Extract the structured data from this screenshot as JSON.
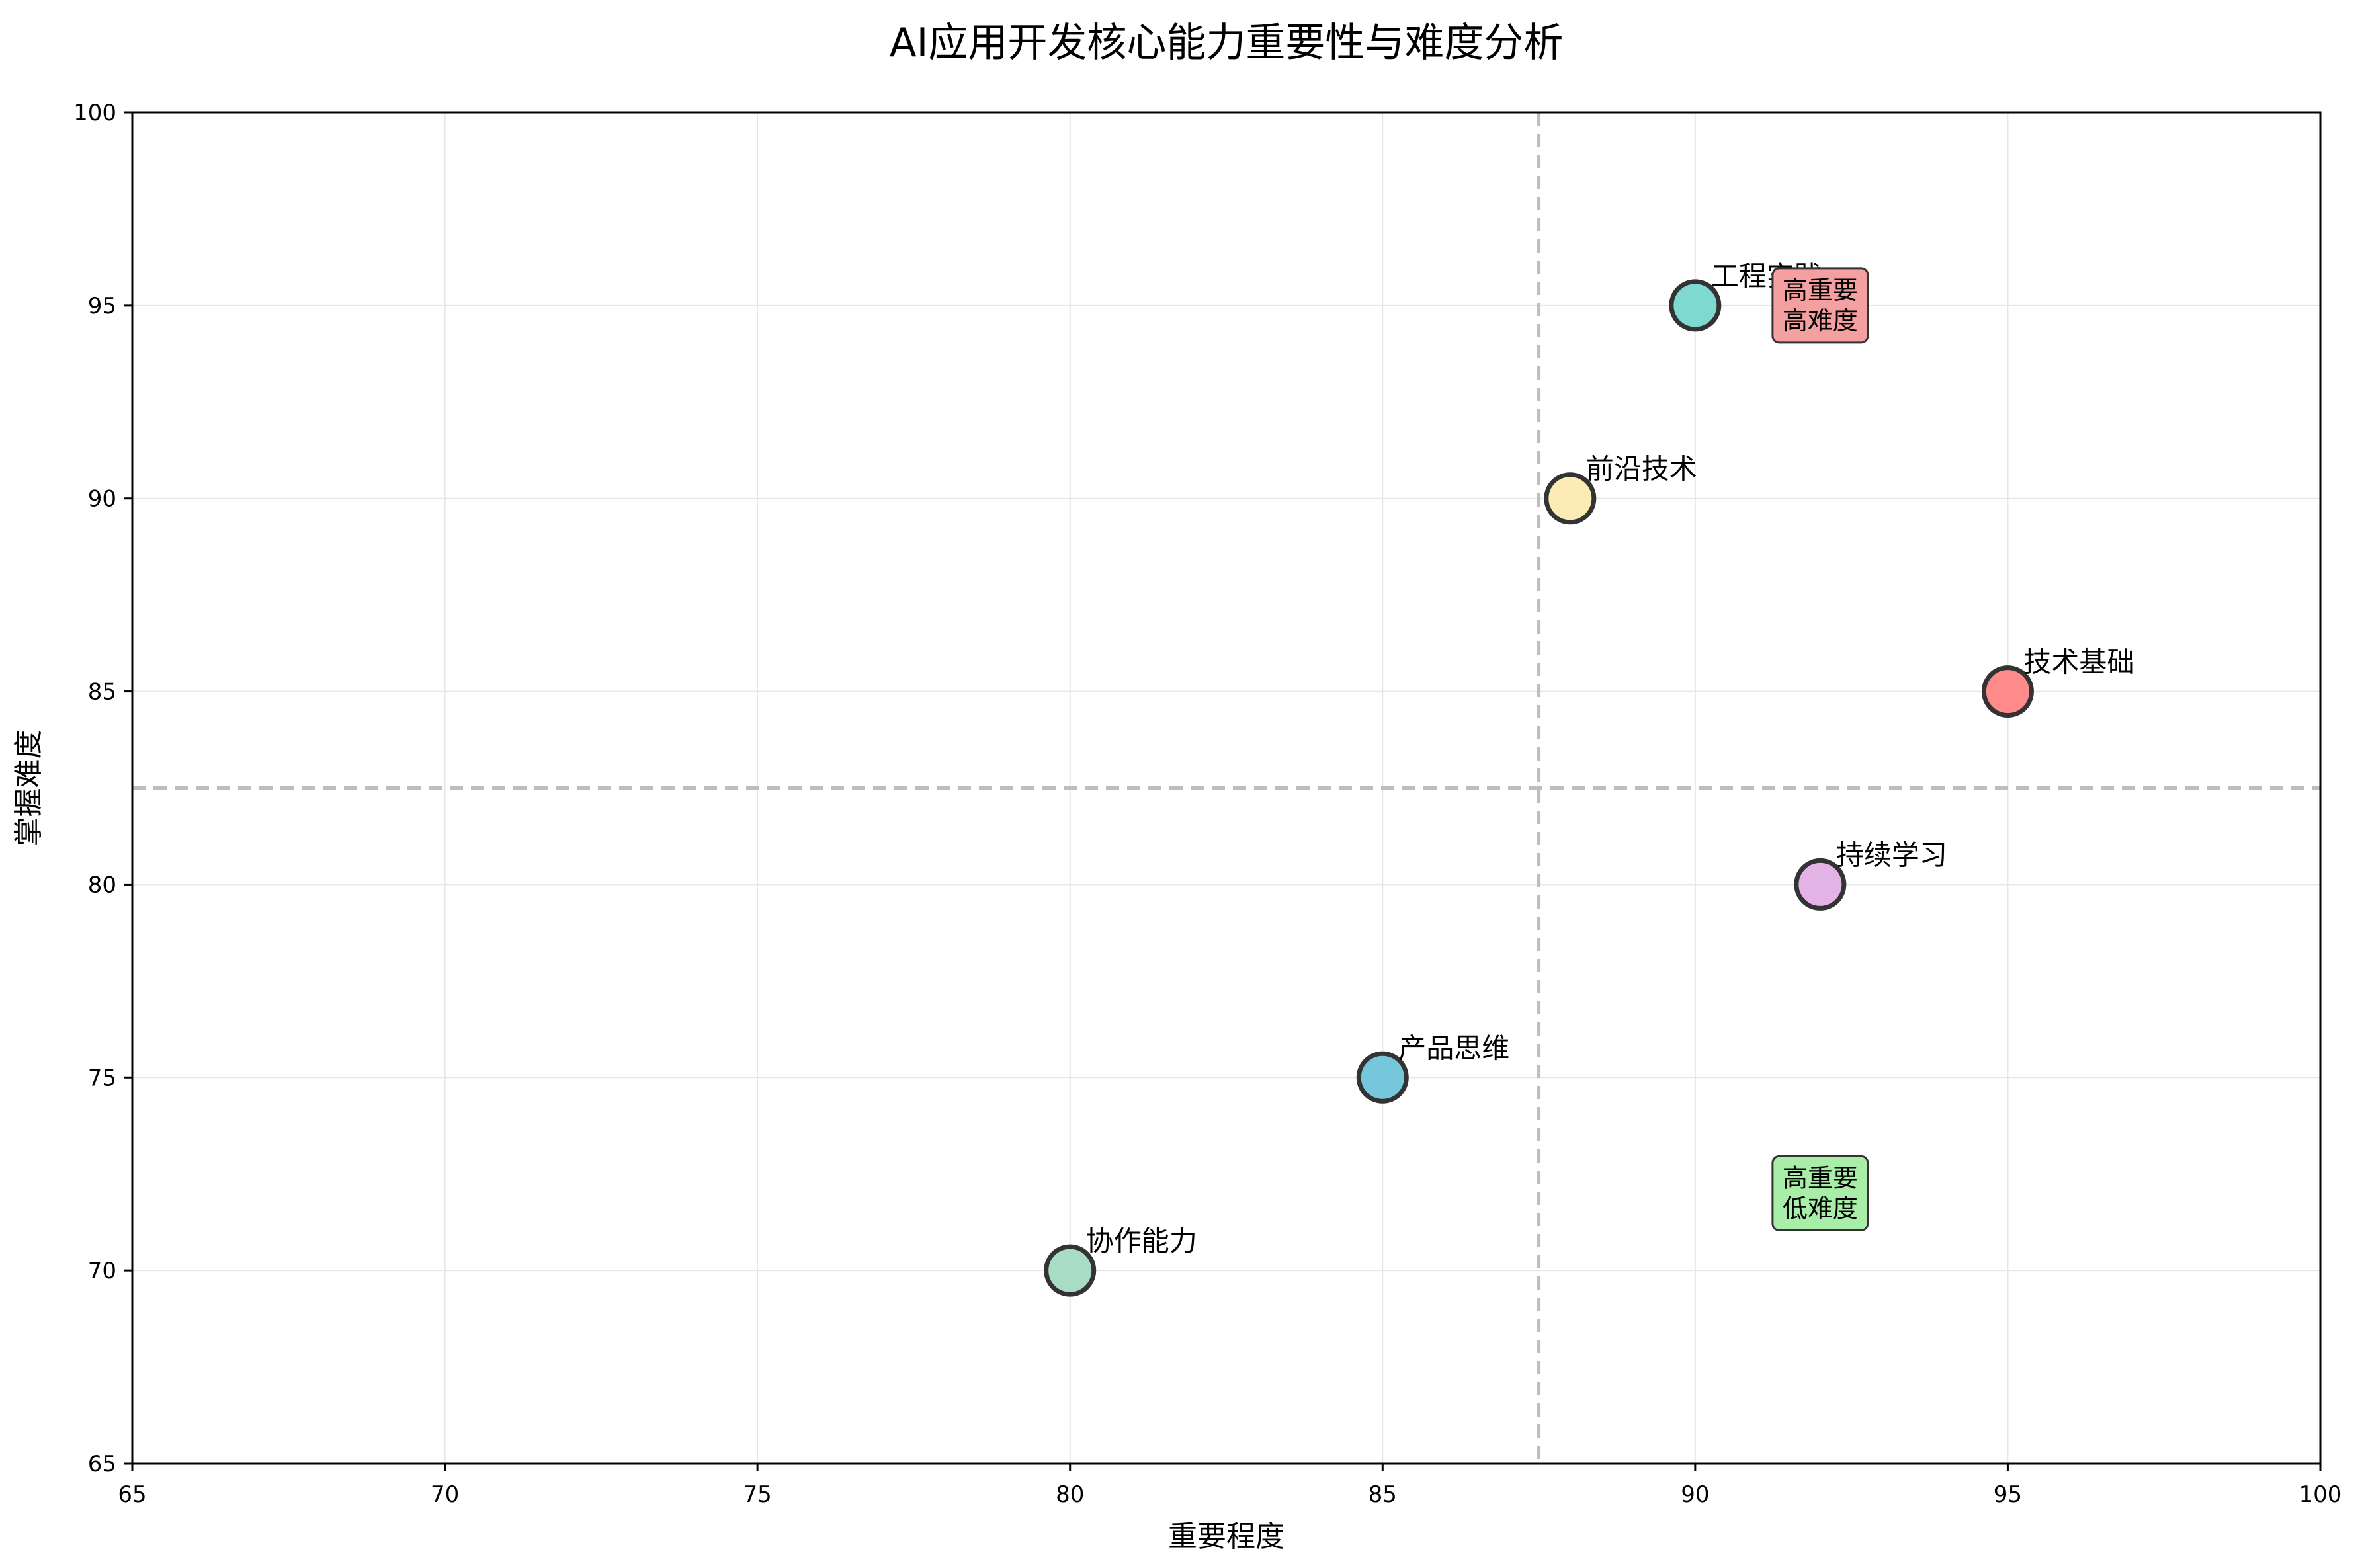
{
  "chart_data": {
    "type": "scatter",
    "title": "AI应用开发核心能力重要性与难度分析",
    "xlabel": "重要程度",
    "ylabel": "掌握难度",
    "xlim": [
      65,
      100
    ],
    "ylim": [
      65,
      100
    ],
    "xticks": [
      65,
      70,
      75,
      80,
      85,
      90,
      95,
      100
    ],
    "yticks": [
      65,
      70,
      75,
      80,
      85,
      90,
      95,
      100
    ],
    "grid": true,
    "reference_lines": {
      "x": 87.5,
      "y": 82.5,
      "style": "dashed",
      "color": "#bdbdbd"
    },
    "points": [
      {
        "label": "技术基础",
        "x": 95,
        "y": 85,
        "color": "#ff8a8a"
      },
      {
        "label": "工程实践",
        "x": 90,
        "y": 95,
        "color": "#7ed9cf"
      },
      {
        "label": "产品思维",
        "x": 85,
        "y": 75,
        "color": "#76c6dc"
      },
      {
        "label": "协作能力",
        "x": 80,
        "y": 70,
        "color": "#a8dcc5"
      },
      {
        "label": "前沿技术",
        "x": 88,
        "y": 90,
        "color": "#fdebb5"
      },
      {
        "label": "持续学习",
        "x": 92,
        "y": 80,
        "color": "#e3b3e6"
      }
    ],
    "annotations": [
      {
        "lines": [
          "高重要",
          "高难度"
        ],
        "x": 92,
        "y": 95,
        "color": "#f4a0a0"
      },
      {
        "lines": [
          "高重要",
          "低难度"
        ],
        "x": 92,
        "y": 72,
        "color": "#a8eea8"
      }
    ]
  }
}
